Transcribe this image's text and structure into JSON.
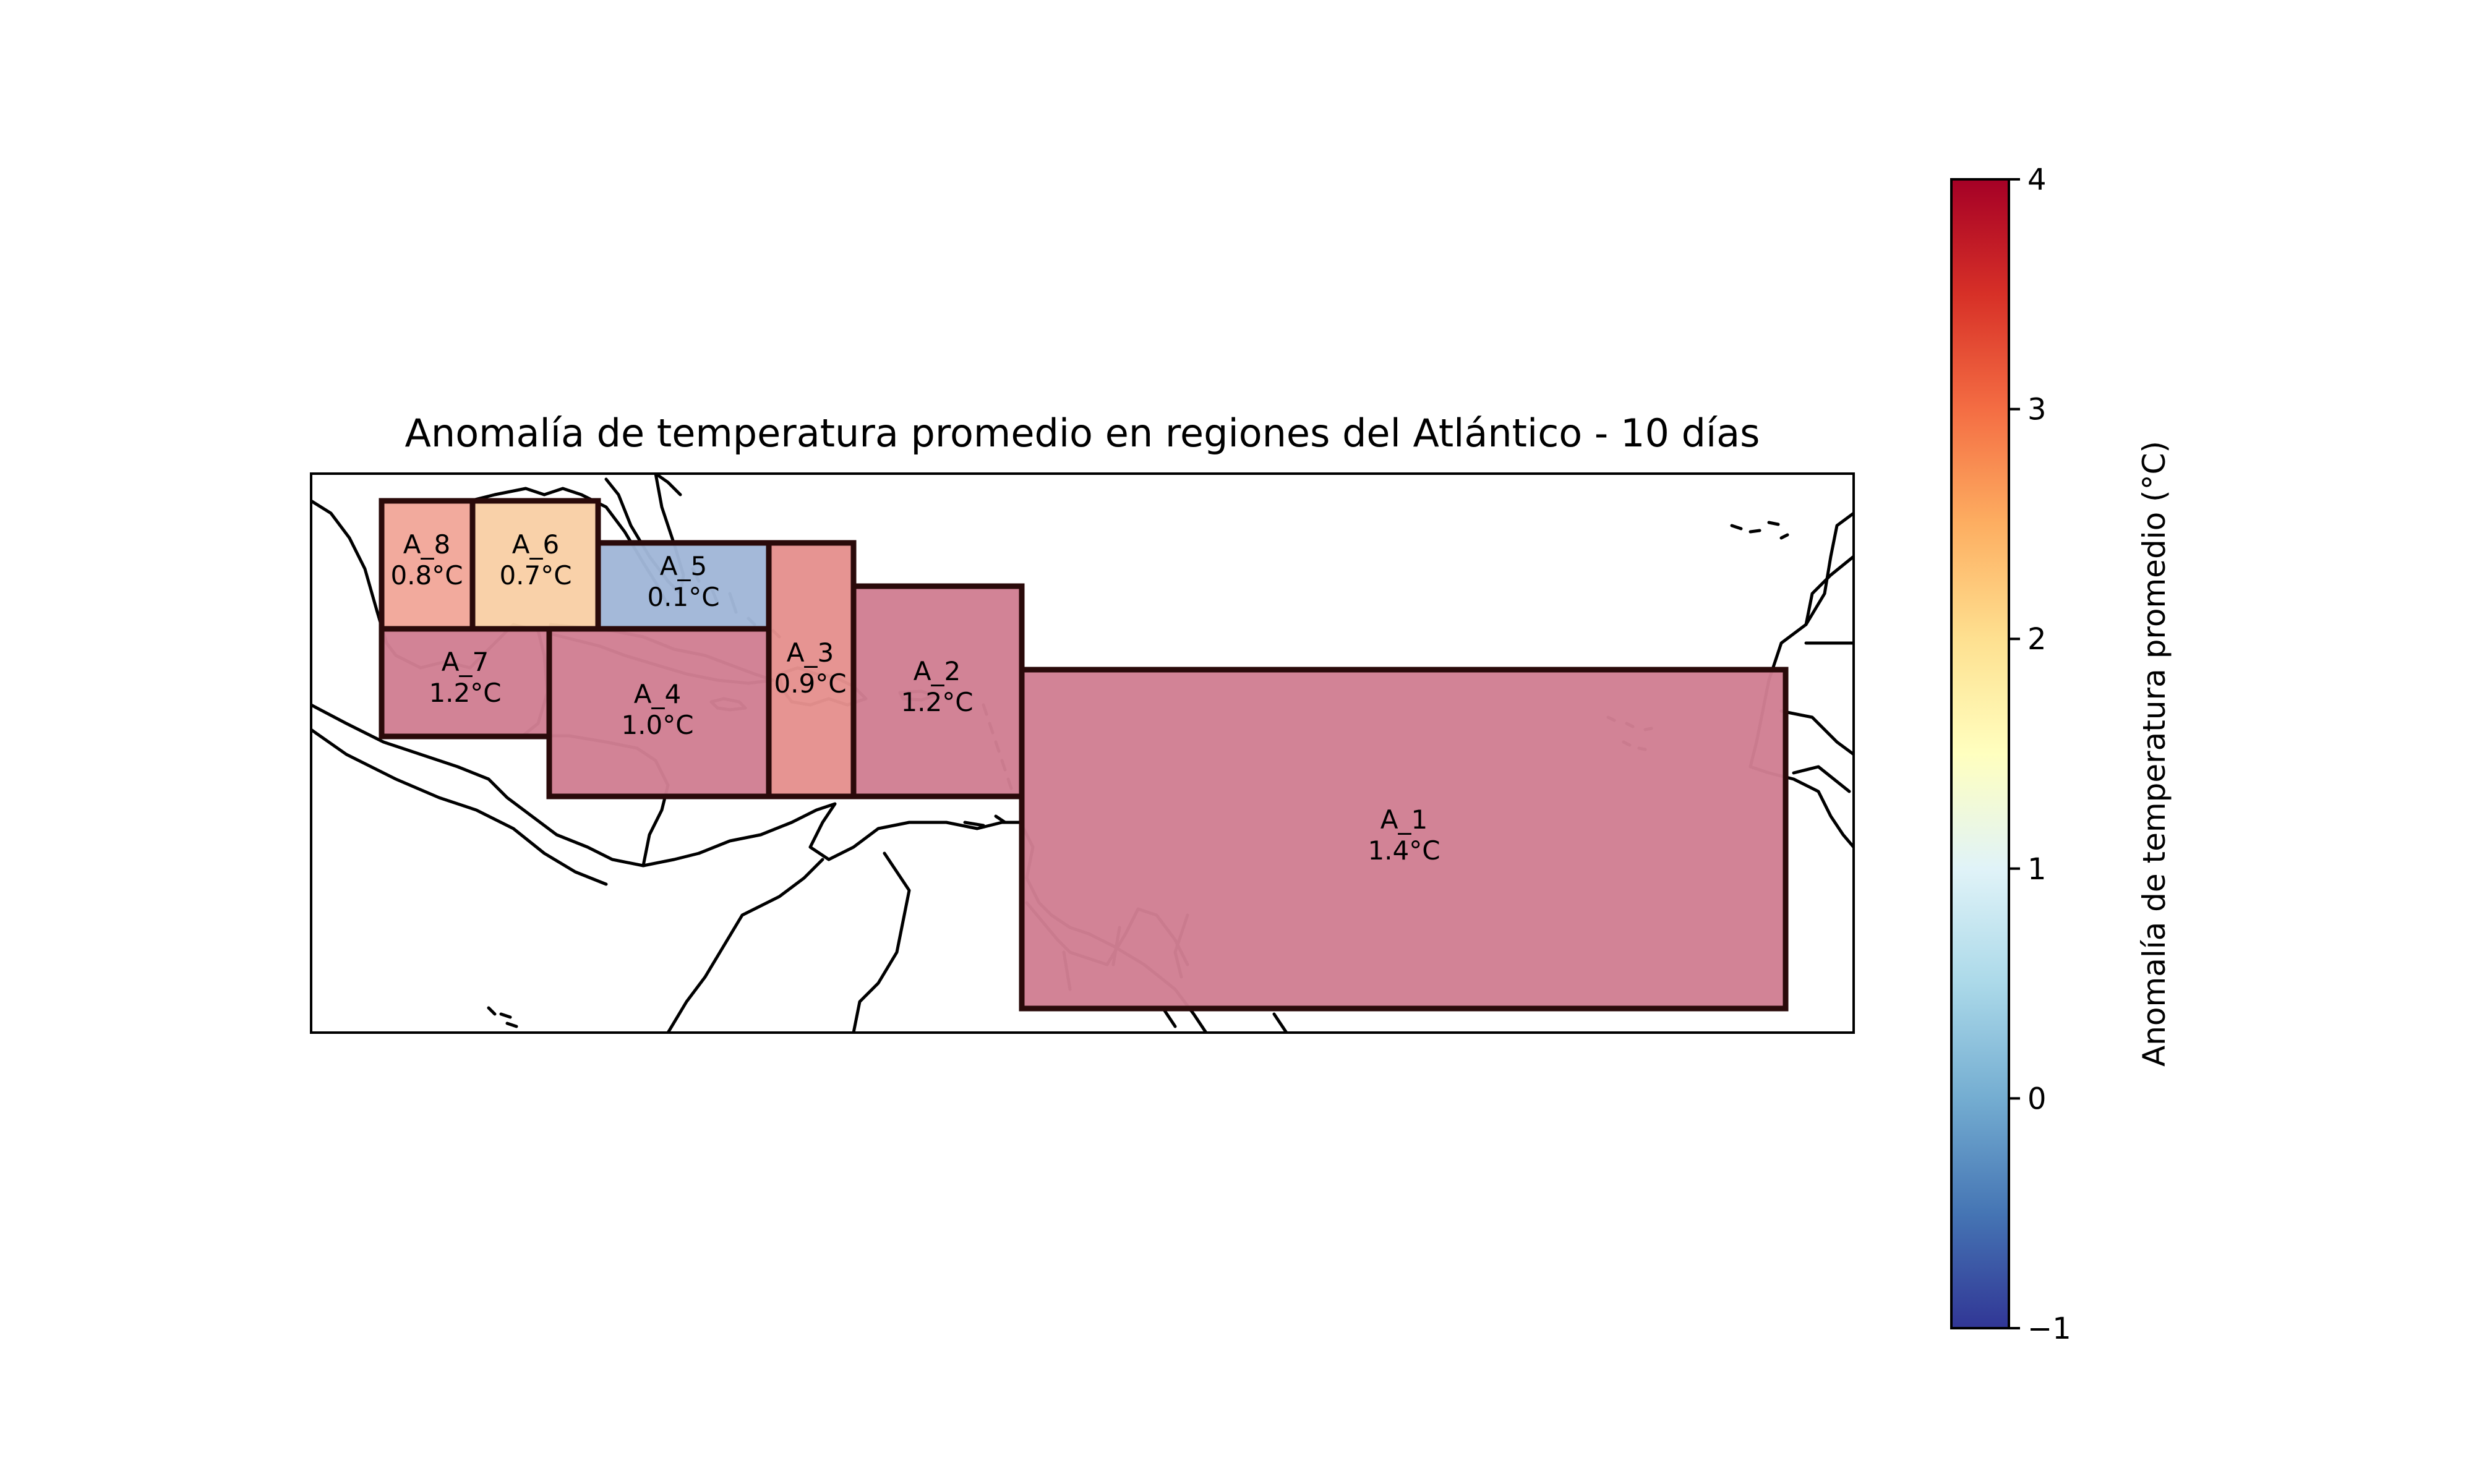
{
  "title": "Anomalía de temperatura promedio en regiones del Atlántico - 10 días",
  "colorbar": {
    "label": "Anomalía de temperatura promedio (°C)",
    "min": -1,
    "max": 4,
    "ticks": [
      "4",
      "3",
      "2",
      "1",
      "0",
      "−1"
    ],
    "colormap": "RdYlBu_r",
    "stops": [
      "#313695",
      "#4575b4",
      "#74add1",
      "#abd9e9",
      "#e0f3f8",
      "#ffffbf",
      "#fee090",
      "#fdae61",
      "#f46d43",
      "#d73027",
      "#a50026"
    ]
  },
  "regions": [
    {
      "id": "A_1",
      "value_label": "1.4°C",
      "anomaly": 1.4,
      "color": "#d17f93"
    },
    {
      "id": "A_2",
      "value_label": "1.2°C",
      "anomaly": 1.2,
      "color": "#d17f93"
    },
    {
      "id": "A_3",
      "value_label": "0.9°C",
      "anomaly": 0.9,
      "color": "#e5918e"
    },
    {
      "id": "A_4",
      "value_label": "1.0°C",
      "anomaly": 1.0,
      "color": "#d17f93"
    },
    {
      "id": "A_5",
      "value_label": "0.1°C",
      "anomaly": 0.1,
      "color": "#a1b7d8"
    },
    {
      "id": "A_6",
      "value_label": "0.7°C",
      "anomaly": 0.7,
      "color": "#f9cfa6"
    },
    {
      "id": "A_7",
      "value_label": "1.2°C",
      "anomaly": 1.2,
      "color": "#d17f93"
    },
    {
      "id": "A_8",
      "value_label": "0.8°C",
      "anomaly": 0.8,
      "color": "#f2a79a"
    }
  ]
}
